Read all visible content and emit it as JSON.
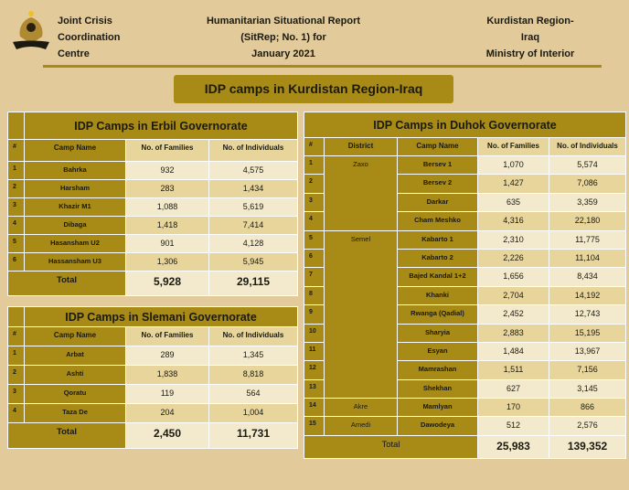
{
  "header": {
    "org": [
      "Joint Crisis",
      "Coordination",
      "Centre"
    ],
    "report": [
      "Humanitarian Situational Report",
      "(SitRep; No. 1) for",
      "January 2021"
    ],
    "ministry": [
      "Kurdistan Region-",
      "Iraq",
      "Ministry of Interior"
    ]
  },
  "banner": "IDP camps in Kurdistan Region-Iraq",
  "erbil": {
    "title": "IDP Camps in Erbil Governorate",
    "columns": [
      "#",
      "Camp Name",
      "No. of Families",
      "No. of Individuals"
    ],
    "rows": [
      [
        "1",
        "Bahrka",
        "932",
        "4,575"
      ],
      [
        "2",
        "Harsham",
        "283",
        "1,434"
      ],
      [
        "3",
        "Khazir  M1",
        "1,088",
        "5,619"
      ],
      [
        "4",
        "Dibaga",
        "1,418",
        "7,414"
      ],
      [
        "5",
        "Hasansham  U2",
        "901",
        "4,128"
      ],
      [
        "6",
        "Hassansham  U3",
        "1,306",
        "5,945"
      ]
    ],
    "total": {
      "label": "Total",
      "families": "5,928",
      "individuals": "29,115"
    }
  },
  "slemani": {
    "title": "IDP Camps in Slemani Governorate",
    "columns": [
      "#",
      "Camp Name",
      "No. of Families",
      "No. of Individuals"
    ],
    "rows": [
      [
        "1",
        "Arbat",
        "289",
        "1,345"
      ],
      [
        "2",
        "Ashti",
        "1,838",
        "8,818"
      ],
      [
        "3",
        "Qoratu",
        "119",
        "564"
      ],
      [
        "4",
        "Taza De",
        "204",
        "1,004"
      ]
    ],
    "total": {
      "label": "Total",
      "families": "2,450",
      "individuals": "11,731"
    }
  },
  "duhok": {
    "title": "IDP Camps in Duhok Governorate",
    "columns": [
      "#",
      "District",
      "Camp Name",
      "No. of Families",
      "No. of Individuals"
    ],
    "districts": [
      {
        "name": "Zaxo",
        "span": 4
      },
      {
        "name": "Semel",
        "span": 9
      },
      {
        "name": "Akre",
        "span": 1
      },
      {
        "name": "Amedi",
        "span": 1
      }
    ],
    "rows": [
      [
        "1",
        "Bersev 1",
        "1,070",
        "5,574"
      ],
      [
        "2",
        "Bersev 2",
        "1,427",
        "7,086"
      ],
      [
        "3",
        "Darkar",
        "635",
        "3,359"
      ],
      [
        "4",
        "Cham  Meshko",
        "4,316",
        "22,180"
      ],
      [
        "5",
        "Kabarto  1",
        "2,310",
        "11,775"
      ],
      [
        "6",
        "Kabarto  2",
        "2,226",
        "11,104"
      ],
      [
        "7",
        "Bajed  Kandal  1+2",
        "1,656",
        "8,434"
      ],
      [
        "8",
        "Khanki",
        "2,704",
        "14,192"
      ],
      [
        "9",
        "Rwanga  (Qadial)",
        "2,452",
        "12,743"
      ],
      [
        "10",
        "Sharyia",
        "2,883",
        "15,195"
      ],
      [
        "11",
        "Esyan",
        "1,484",
        "13,967"
      ],
      [
        "12",
        "Mamrashan",
        "1,511",
        "7,156"
      ],
      [
        "13",
        "Shekhan",
        "627",
        "3,145"
      ],
      [
        "14",
        "Mamlyan",
        "170",
        "866"
      ],
      [
        "15",
        "Dawodeya",
        "512",
        "2,576"
      ]
    ],
    "total": {
      "label": "Total",
      "families": "25,983",
      "individuals": "139,352"
    }
  }
}
